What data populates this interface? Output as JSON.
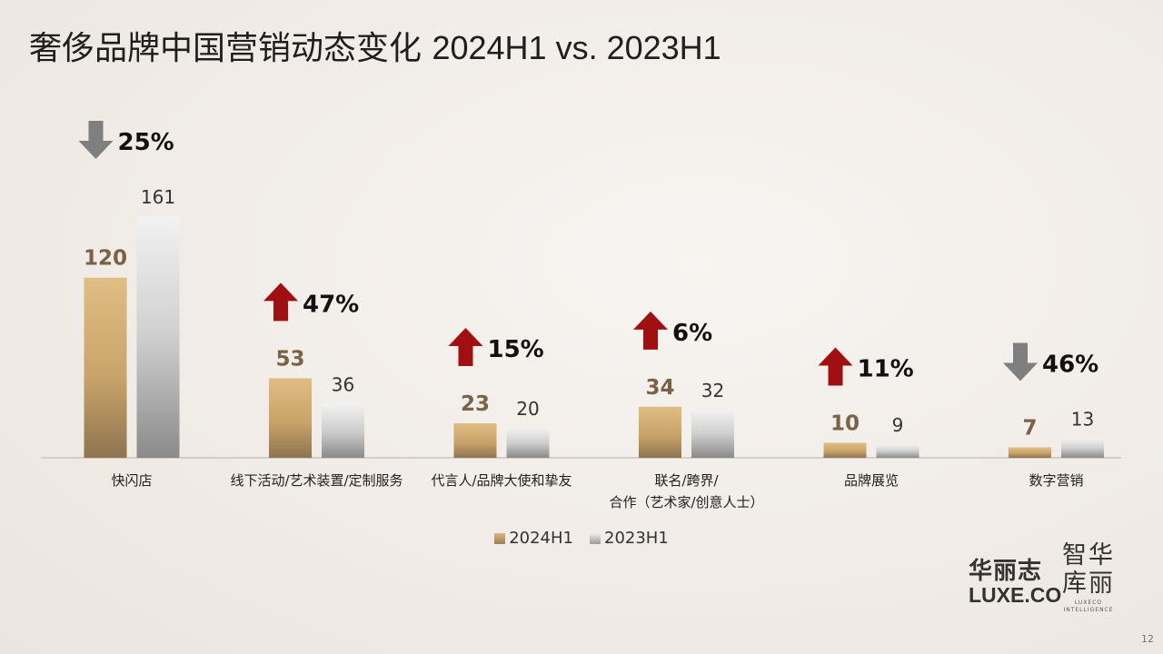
{
  "title_cn": "奢侈品牌中国营销动态变化",
  "title_en": "2024H1 vs. 2023H1",
  "chart_data": {
    "type": "bar",
    "categories": [
      [
        "快闪店"
      ],
      [
        "线下活动/艺术装置/定制服务"
      ],
      [
        "代言人/品牌大使和挚友"
      ],
      [
        "联名/跨界/",
        "合作（艺术家/创意人士）"
      ],
      [
        "品牌展览"
      ],
      [
        "数字营销"
      ]
    ],
    "series": [
      {
        "name": "2024H1",
        "values": [
          120,
          53,
          23,
          34,
          10,
          7
        ]
      },
      {
        "name": "2023H1",
        "values": [
          161,
          36,
          20,
          32,
          9,
          13
        ]
      }
    ],
    "changes": [
      {
        "direction": "down",
        "label": "25%"
      },
      {
        "direction": "up",
        "label": "47%"
      },
      {
        "direction": "up",
        "label": "15%"
      },
      {
        "direction": "up",
        "label": "6%"
      },
      {
        "direction": "up",
        "label": "11%"
      },
      {
        "direction": "down",
        "label": "46%"
      }
    ],
    "ylim": [
      0,
      161
    ],
    "grid": false,
    "legend": "bottom-center"
  },
  "colors": {
    "bar_2024": "#c8a46a",
    "bar_2023": "#c9c9c9",
    "label_2024": "#7a6244",
    "arrow_up": "#a01012",
    "arrow_down": "#7f7f7f"
  },
  "logo": {
    "cn": "华丽志",
    "en": "LUXE.CO",
    "seal": "智华库丽",
    "sub": "LUXECO INTELLIGENCE"
  },
  "page_number": "12"
}
